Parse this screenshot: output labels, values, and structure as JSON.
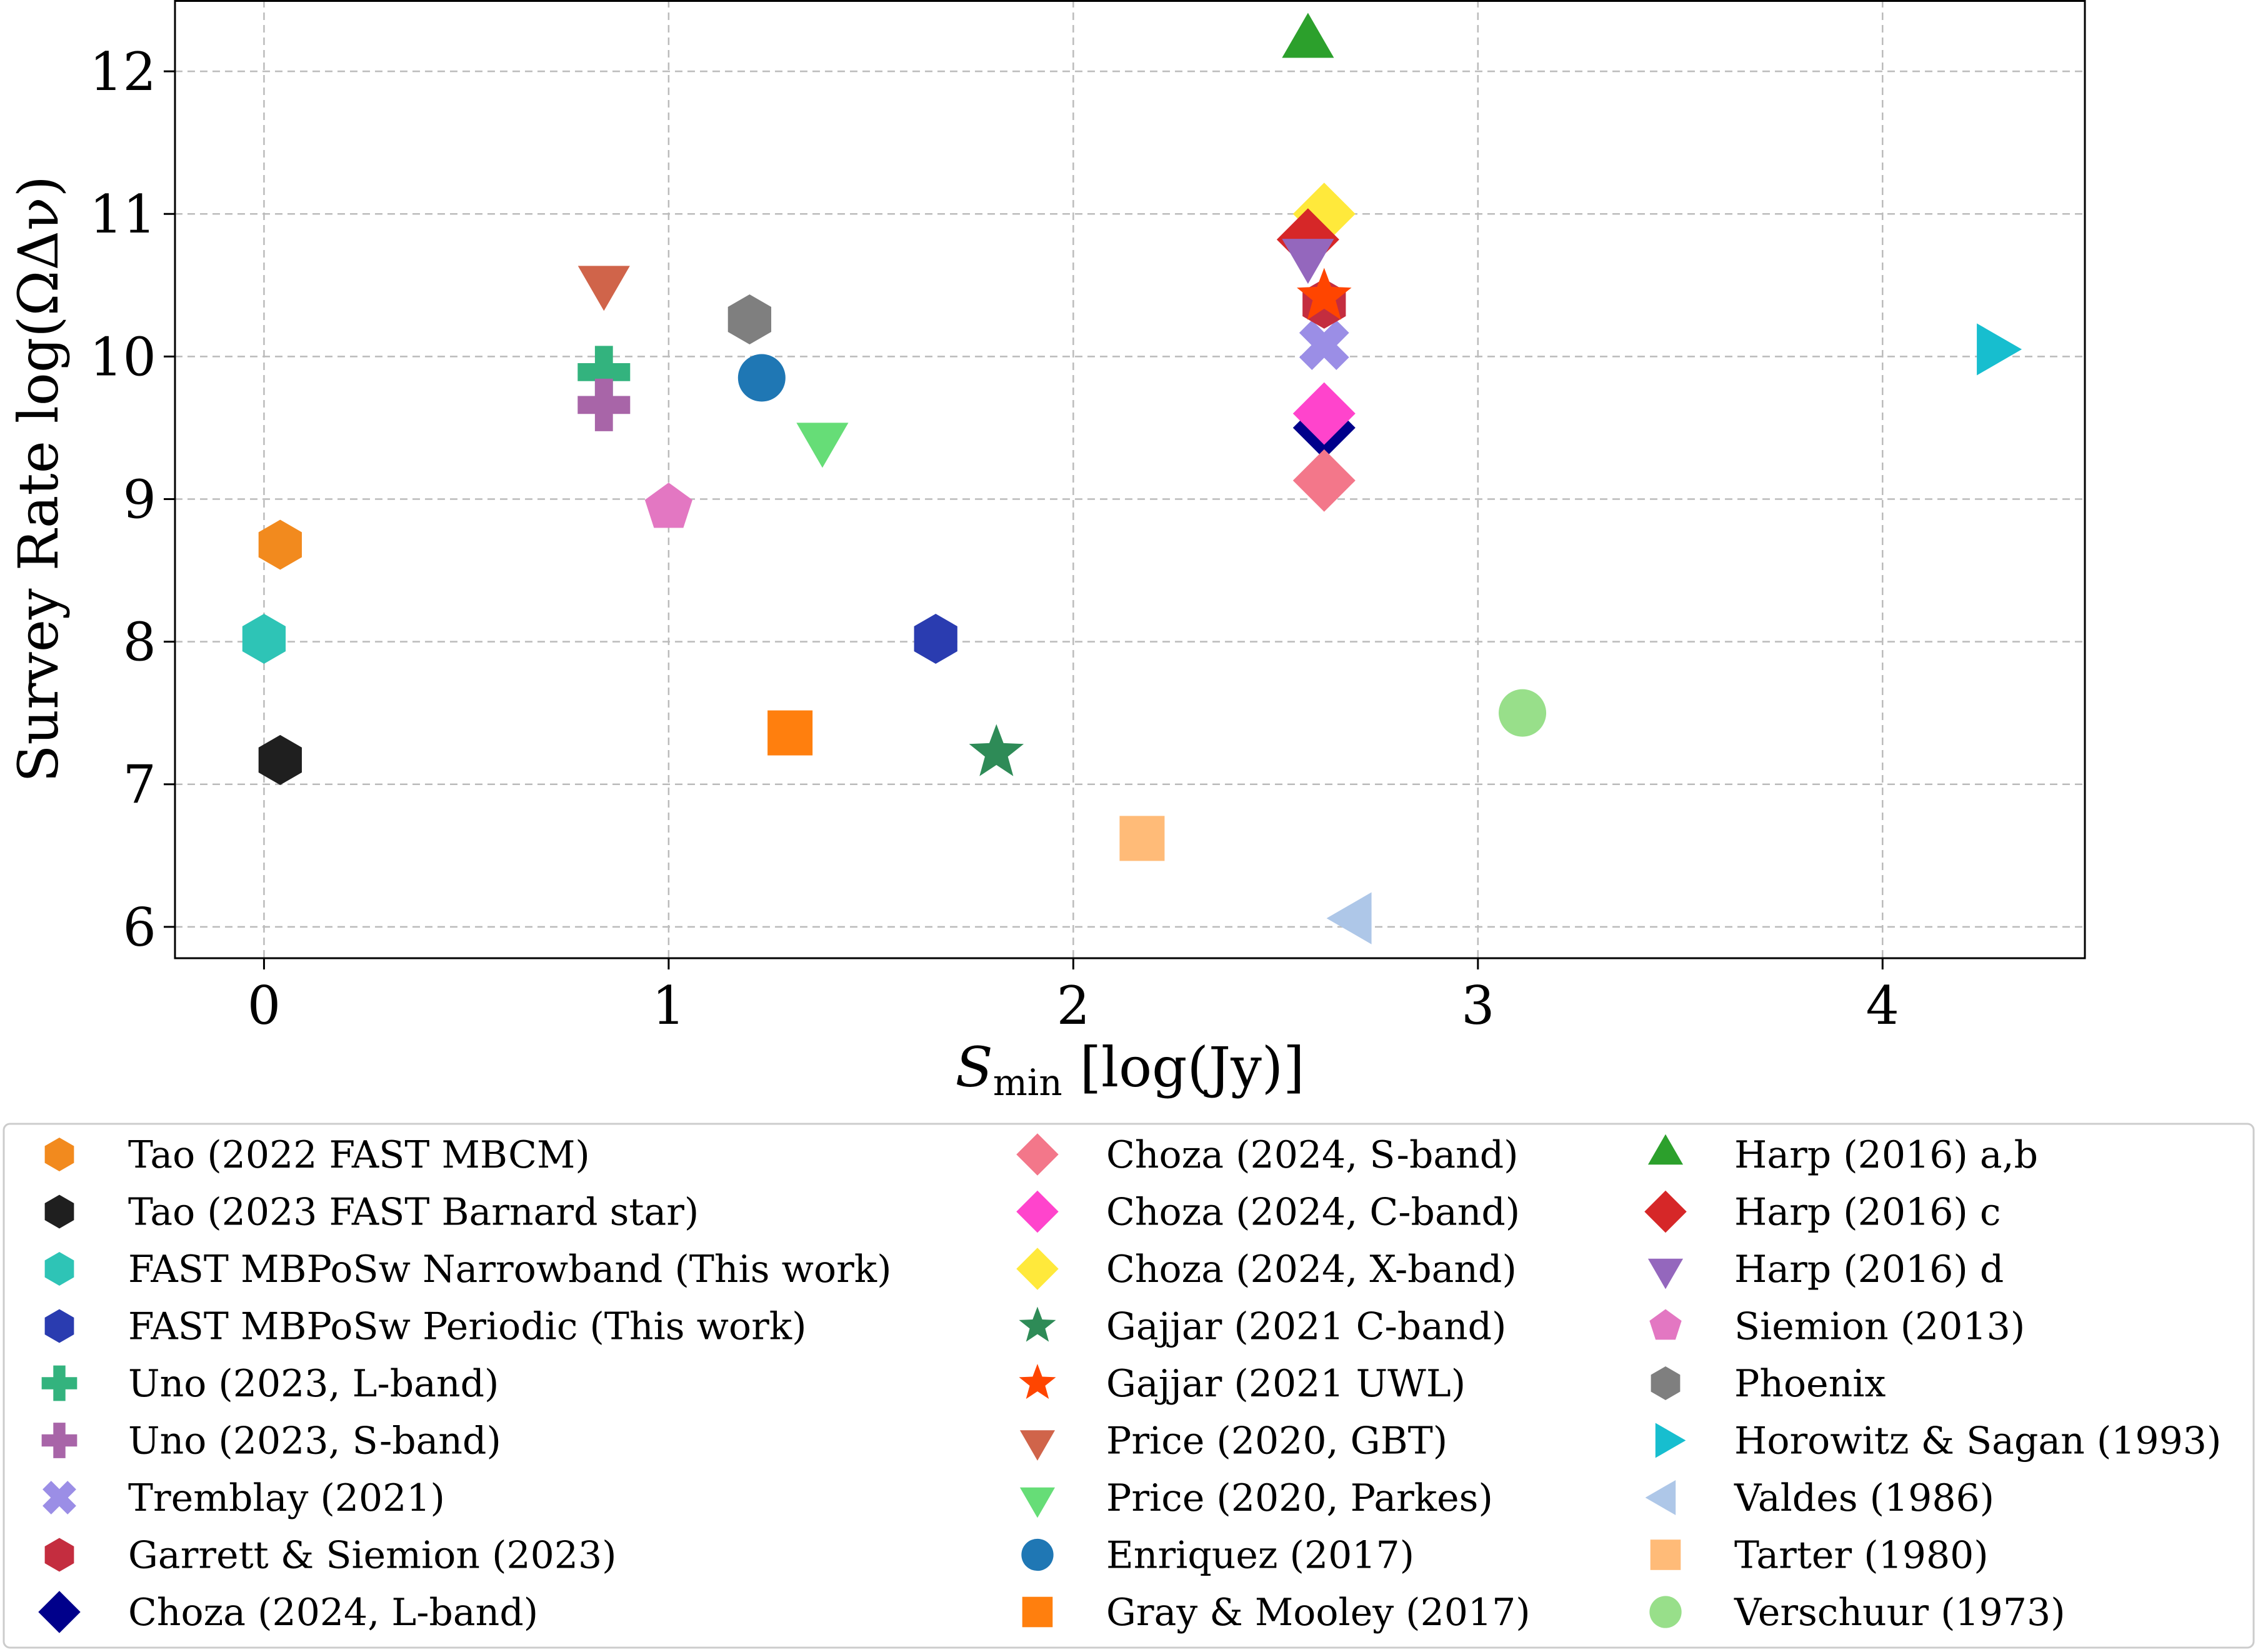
{
  "chart_data": {
    "type": "scatter",
    "title": "",
    "xlabel": {
      "symbol": "S",
      "subscript": "min",
      "unit": " [log(Jy)]"
    },
    "ylabel": "Survey Rate log(ΩΔν)",
    "xlim": [
      -0.22,
      4.5
    ],
    "ylim": [
      5.78,
      12.5
    ],
    "xticks": [
      0,
      1,
      2,
      3,
      4
    ],
    "yticks": [
      6,
      7,
      8,
      9,
      10,
      11,
      12
    ],
    "grid": true,
    "legend_position": "bottom",
    "series": [
      {
        "name": "Tao (2022 FAST MBCM)",
        "marker": "hexagon",
        "color": "#f28a1e",
        "points": [
          [
            0.04,
            8.68
          ]
        ]
      },
      {
        "name": "Tao (2023 FAST Barnard star)",
        "marker": "hexagon",
        "color": "#1f1f1f",
        "points": [
          [
            0.04,
            7.17
          ]
        ]
      },
      {
        "name": "FAST MBPoSw Narrowband (This work)",
        "marker": "hexagon",
        "color": "#2ec4b6",
        "points": [
          [
            0.0,
            8.02
          ]
        ]
      },
      {
        "name": "FAST MBPoSw Periodic (This work)",
        "marker": "hexagon",
        "color": "#2a3cb0",
        "points": [
          [
            1.66,
            8.02
          ]
        ]
      },
      {
        "name": "Uno (2023, L-band)",
        "marker": "plus",
        "color": "#33b37e",
        "points": [
          [
            0.84,
            9.89
          ]
        ]
      },
      {
        "name": "Uno (2023, S-band)",
        "marker": "plus",
        "color": "#a865a8",
        "points": [
          [
            0.84,
            9.66
          ]
        ]
      },
      {
        "name": "Tremblay (2021)",
        "marker": "x",
        "color": "#9b8ee6",
        "points": [
          [
            2.62,
            10.08
          ]
        ]
      },
      {
        "name": "Garrett & Siemion (2023)",
        "marker": "hexagon",
        "color": "#c42d3f",
        "points": [
          [
            2.62,
            10.37
          ]
        ]
      },
      {
        "name": "Choza (2024, L-band)",
        "marker": "diamond",
        "color": "#00008b",
        "points": [
          [
            2.62,
            9.5
          ]
        ]
      },
      {
        "name": "Choza (2024, S-band)",
        "marker": "diamond",
        "color": "#f3778a",
        "points": [
          [
            2.62,
            9.13
          ]
        ]
      },
      {
        "name": "Choza (2024, C-band)",
        "marker": "diamond",
        "color": "#ff44cc",
        "points": [
          [
            2.62,
            9.6
          ]
        ]
      },
      {
        "name": "Choza (2024, X-band)",
        "marker": "diamond",
        "color": "#ffe93b",
        "points": [
          [
            2.62,
            11.0
          ]
        ]
      },
      {
        "name": "Gajjar (2021 C-band)",
        "marker": "star",
        "color": "#2e8b57",
        "points": [
          [
            1.81,
            7.22
          ]
        ]
      },
      {
        "name": "Gajjar (2021 UWL)",
        "marker": "star",
        "color": "#ff4500",
        "points": [
          [
            2.62,
            10.42
          ]
        ]
      },
      {
        "name": "Price (2020, GBT)",
        "marker": "triangle-down",
        "color": "#d0644a",
        "points": [
          [
            0.84,
            10.53
          ]
        ]
      },
      {
        "name": "Price (2020, Parkes)",
        "marker": "triangle-down",
        "color": "#66dd77",
        "points": [
          [
            1.38,
            9.43
          ]
        ]
      },
      {
        "name": "Enriquez (2017)",
        "marker": "circle",
        "color": "#1f77b4",
        "points": [
          [
            1.23,
            9.85
          ]
        ]
      },
      {
        "name": "Gray & Mooley (2017)",
        "marker": "square",
        "color": "#ff7f0e",
        "points": [
          [
            1.3,
            7.36
          ]
        ]
      },
      {
        "name": "Harp (2016) a,b",
        "marker": "triangle-up",
        "color": "#2ca02c",
        "points": [
          [
            2.58,
            12.2
          ]
        ]
      },
      {
        "name": "Harp (2016) c",
        "marker": "diamond",
        "color": "#d62728",
        "points": [
          [
            2.58,
            10.82
          ]
        ]
      },
      {
        "name": "Harp (2016) d",
        "marker": "triangle-down",
        "color": "#9467bd",
        "points": [
          [
            2.58,
            10.72
          ]
        ]
      },
      {
        "name": "Siemion (2013)",
        "marker": "pentagon",
        "color": "#e377c2",
        "points": [
          [
            1.0,
            8.94
          ]
        ]
      },
      {
        "name": "Phoenix",
        "marker": "hexagon",
        "color": "#7f7f7f",
        "points": [
          [
            1.2,
            10.26
          ]
        ]
      },
      {
        "name": "Horowitz & Sagan (1993)",
        "marker": "triangle-right",
        "color": "#17becf",
        "points": [
          [
            4.27,
            10.05
          ]
        ]
      },
      {
        "name": "Valdes (1986)",
        "marker": "triangle-left",
        "color": "#aec7e8",
        "points": [
          [
            2.7,
            6.06
          ]
        ]
      },
      {
        "name": "Tarter (1980)",
        "marker": "square",
        "color": "#ffbb78",
        "points": [
          [
            2.17,
            6.62
          ]
        ]
      },
      {
        "name": "Verschuur (1973)",
        "marker": "circle",
        "color": "#98df8a",
        "points": [
          [
            3.11,
            7.5
          ]
        ]
      }
    ]
  }
}
